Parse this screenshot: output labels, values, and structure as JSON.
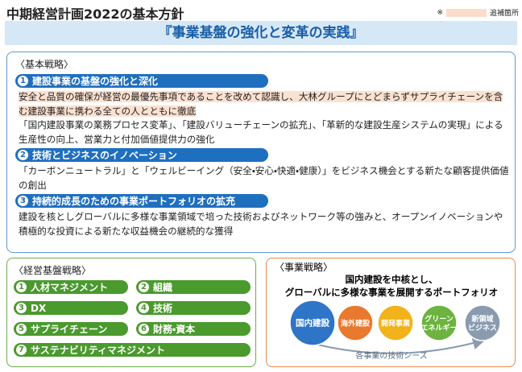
{
  "header": {
    "title": "中期経営計画2022の基本方針",
    "note_mark": "※",
    "note_text": "追補箇所"
  },
  "banner": "『事業基盤の強化と変革の実践』",
  "basic_strategy": {
    "title": "〈基本戦略〉",
    "items": [
      {
        "num": "1",
        "heading": "建設事業の基盤の強化と深化",
        "paragraphs": [
          "安全と品質の確保が経営の最優先事項であることを改めて認識し、大林グループにとどまらずサプライチェーンを含む建設事業に携わる全ての人とともに徹底",
          "「国内建設事業の業務プロセス変革」、「建設バリューチェーンの拡充」、「革新的な建設生産システムの実現」による生産性の向上、営業力と付加価値提供力の強化"
        ]
      },
      {
        "num": "2",
        "heading": "技術とビジネスのイノベーション",
        "paragraphs": [
          "「カーボンニュートラル」と「ウェルビーイング（安全・安心・快適・健康）」をビジネス機会とする新たな顧客提供価値の創出"
        ]
      },
      {
        "num": "3",
        "heading": "持続的成長のための事業ポートフォリオの拡充",
        "paragraphs": [
          "建設を核としグローバルに多様な事業領域で培った技術およびネットワーク等の強みと、オープンイノベーションや積極的な投資による新たな収益機会の継続的な獲得"
        ]
      }
    ]
  },
  "management_strategy": {
    "title": "〈経営基盤戦略〉",
    "items": [
      {
        "num": "1",
        "label": "人材マネジメント"
      },
      {
        "num": "2",
        "label": "組織"
      },
      {
        "num": "3",
        "label": "DX"
      },
      {
        "num": "4",
        "label": "技術"
      },
      {
        "num": "5",
        "label": "サプライチェーン"
      },
      {
        "num": "6",
        "label": "財務・資本"
      },
      {
        "num": "7",
        "label": "サステナビリティマネジメント"
      }
    ]
  },
  "business_strategy": {
    "title": "〈事業戦略〉",
    "headline": [
      "国内建設を中核とし、",
      "グローバルに多様な事業を展開するポートフォリオ"
    ],
    "circles": [
      {
        "lines": [
          "国内建設"
        ]
      },
      {
        "lines": [
          "海外建設"
        ]
      },
      {
        "lines": [
          "開発事業"
        ]
      },
      {
        "lines": [
          "グリーン",
          "エネルギー"
        ]
      },
      {
        "lines": [
          "新領域",
          "ビジネス"
        ]
      }
    ],
    "arrow_label": "各事業の技術シーズ"
  }
}
